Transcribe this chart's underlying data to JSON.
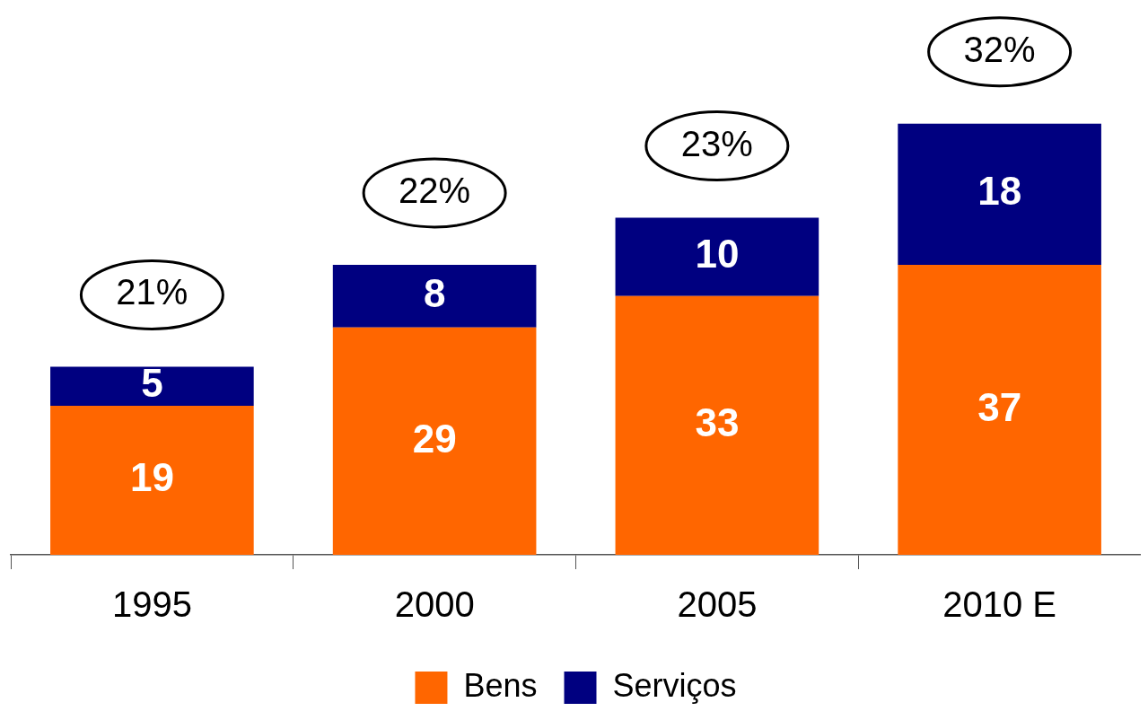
{
  "chart_data": {
    "type": "bar",
    "stacked": true,
    "data_labels": true,
    "legend": "bottom",
    "categories": [
      "1995",
      "2000",
      "2005",
      "2010 E"
    ],
    "series": [
      {
        "name": "Bens",
        "color": "#ff6600",
        "values": [
          19,
          29,
          33,
          37
        ]
      },
      {
        "name": "Serviços",
        "color": "#000080",
        "values": [
          5,
          8,
          10,
          18
        ]
      }
    ],
    "annotations": [
      "21%",
      "22%",
      "23%",
      "32%"
    ]
  }
}
